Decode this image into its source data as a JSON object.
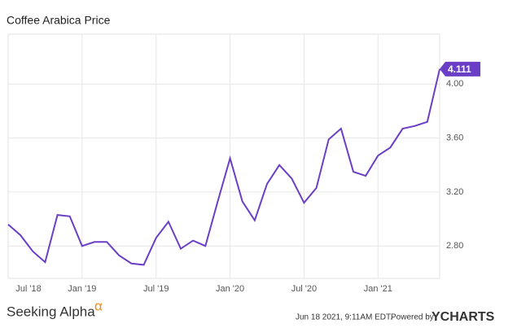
{
  "chart_data": {
    "type": "line",
    "title": "Coffee Arabica Price",
    "categories": [
      "Jul '18",
      null,
      null,
      null,
      null,
      null,
      "Jan '19",
      null,
      null,
      null,
      null,
      null,
      "Jul '19",
      null,
      null,
      null,
      null,
      null,
      "Jan '20",
      null,
      null,
      null,
      null,
      null,
      "Jul '20",
      null,
      null,
      null,
      null,
      null,
      "Jan '21",
      null,
      null,
      null,
      null,
      null
    ],
    "series": [
      {
        "name": "Coffee Arabica Price",
        "color": "#6a3fc6",
        "values": [
          2.96,
          2.88,
          2.76,
          2.68,
          3.03,
          3.02,
          2.8,
          2.83,
          2.83,
          2.73,
          2.67,
          2.66,
          2.86,
          2.98,
          2.78,
          2.84,
          2.8,
          3.13,
          3.45,
          3.13,
          2.99,
          3.26,
          3.4,
          3.3,
          3.12,
          3.23,
          3.59,
          3.67,
          3.35,
          3.32,
          3.47,
          3.53,
          3.67,
          3.69,
          3.72,
          4.111
        ]
      }
    ],
    "ylim": [
      2.56,
      4.37
    ],
    "yticks": [
      {
        "value": 2.8,
        "label": "2.80"
      },
      {
        "value": 3.2,
        "label": "3.20"
      },
      {
        "value": 3.6,
        "label": "3.60"
      },
      {
        "value": 4.0,
        "label": "4.00"
      }
    ],
    "grid": true,
    "brand": "Seeking Alpha",
    "brand_mark": "α",
    "timestamp": "Jun 18 2021, 9:11AM EDT.",
    "powered_by": "Powered by",
    "provider": "YCHARTS"
  }
}
